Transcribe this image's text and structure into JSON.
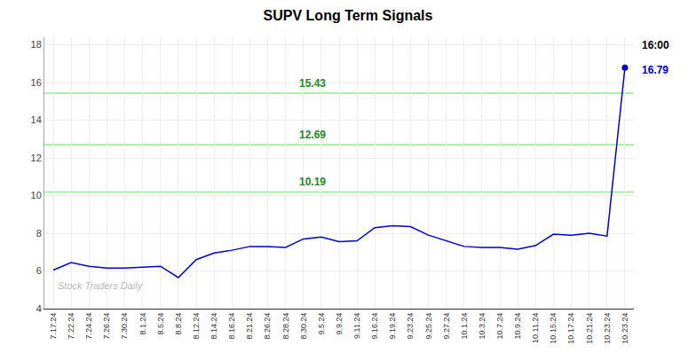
{
  "chart_data": {
    "type": "line",
    "title": "SUPV Long Term Signals",
    "categories": [
      "7.17.24",
      "7.22.24",
      "7.24.24",
      "7.26.24",
      "7.30.24",
      "8.1.24",
      "8.5.24",
      "8.8.24",
      "8.12.24",
      "8.14.24",
      "8.16.24",
      "8.21.24",
      "8.26.24",
      "8.28.24",
      "8.30.24",
      "9.5.24",
      "9.9.24",
      "9.11.24",
      "9.16.24",
      "9.19.24",
      "9.23.24",
      "9.25.24",
      "9.27.24",
      "10.1.24",
      "10.3.24",
      "10.7.24",
      "10.9.24",
      "10.11.24",
      "10.15.24",
      "10.17.24",
      "10.21.24",
      "10.23.24",
      "10.23.24"
    ],
    "values": [
      6.05,
      6.45,
      6.25,
      6.15,
      6.15,
      6.2,
      6.25,
      5.65,
      6.6,
      6.95,
      7.1,
      7.3,
      7.3,
      7.25,
      7.7,
      7.8,
      7.55,
      7.6,
      8.3,
      8.4,
      8.35,
      7.9,
      7.6,
      7.3,
      7.25,
      7.25,
      7.15,
      7.35,
      7.95,
      7.9,
      8.0,
      7.85,
      16.79
    ],
    "color": "#0000cc",
    "ylim": [
      4,
      18.4
    ],
    "yticks": [
      4,
      6,
      8,
      10,
      12,
      14,
      16,
      18
    ],
    "grid": true,
    "hlines": {
      "values": [
        15.43,
        12.69,
        10.19
      ],
      "color": "#90EE90",
      "label_color": "#228B22"
    },
    "annotations": [
      {
        "text": "16:00",
        "color": "#000000"
      },
      {
        "text": "16.79",
        "color": "#0000cc"
      }
    ],
    "watermark": {
      "text": "Stock Traders Daily",
      "color": "#aaaaaa"
    }
  }
}
